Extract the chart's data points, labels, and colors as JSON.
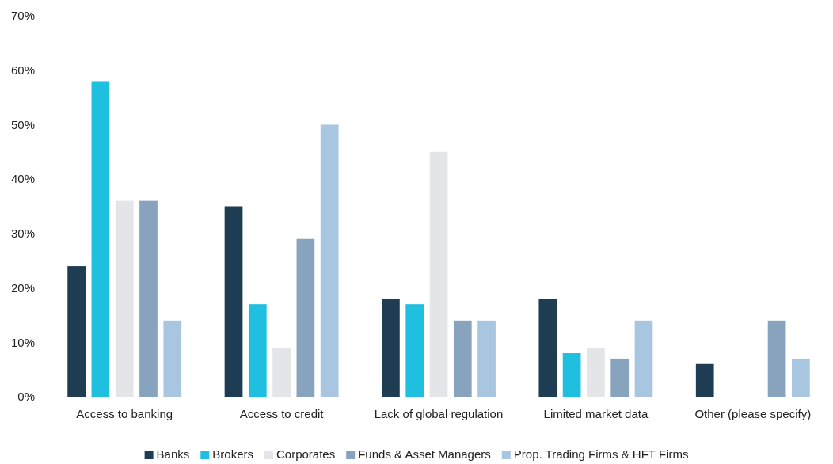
{
  "chart_data": {
    "type": "bar",
    "categories": [
      "Access to banking",
      "Access to credit",
      "Lack of global regulation",
      "Limited market data",
      "Other (please specify)"
    ],
    "series": [
      {
        "name": "Banks",
        "color": "#1e3d52",
        "values": [
          24,
          35,
          18,
          18,
          6
        ]
      },
      {
        "name": "Brokers",
        "color": "#1fbfdf",
        "values": [
          58,
          17,
          17,
          8,
          0
        ]
      },
      {
        "name": "Corporates",
        "color": "#e4e5e8",
        "values": [
          36,
          9,
          45,
          9,
          0
        ]
      },
      {
        "name": "Funds & Asset Managers",
        "color": "#87a3be",
        "values": [
          36,
          29,
          14,
          7,
          14
        ]
      },
      {
        "name": "Prop. Trading Firms & HFT Firms",
        "color": "#a9c6e0",
        "values": [
          14,
          50,
          14,
          14,
          7
        ]
      }
    ],
    "ylim": [
      0,
      70
    ],
    "yticks": [
      {
        "value": 0,
        "label": "0%"
      },
      {
        "value": 10,
        "label": "10%"
      },
      {
        "value": 20,
        "label": "20%"
      },
      {
        "value": 30,
        "label": "30%"
      },
      {
        "value": 40,
        "label": "40%"
      },
      {
        "value": 50,
        "label": "50%"
      },
      {
        "value": 60,
        "label": "60%"
      },
      {
        "value": 70,
        "label": "70%"
      }
    ],
    "grid": false,
    "legend": "bottom"
  }
}
